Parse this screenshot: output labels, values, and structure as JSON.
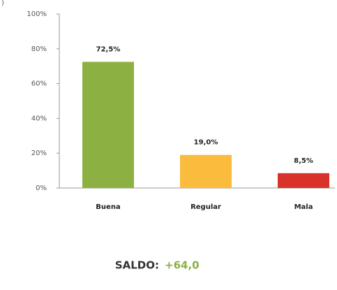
{
  "chart_data": {
    "type": "bar",
    "annotation": ")",
    "categories": [
      "Buena",
      "Regular",
      "Mala"
    ],
    "values": [
      72.5,
      19.0,
      8.5
    ],
    "value_labels": [
      "72,5%",
      "19,0%",
      "8,5%"
    ],
    "colors": [
      "#8db043",
      "#fbbb3c",
      "#d8322b"
    ],
    "ylim": [
      0,
      100
    ],
    "yticks": [
      {
        "value": 0,
        "label": "0%"
      },
      {
        "value": 20,
        "label": "20%"
      },
      {
        "value": 40,
        "label": "40%"
      },
      {
        "value": 60,
        "label": "60%"
      },
      {
        "value": 80,
        "label": "80%"
      },
      {
        "value": 100,
        "label": "100%"
      }
    ],
    "grid": false,
    "footer_label": "SALDO:",
    "footer_value": "+64,0",
    "footer_value_color": "#8db043"
  }
}
